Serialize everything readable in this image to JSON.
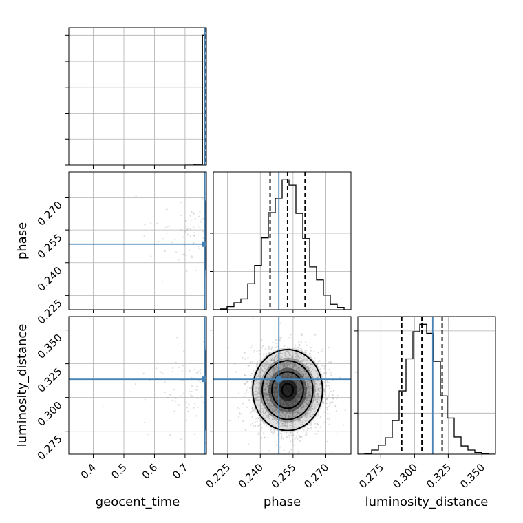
{
  "chart_data": {
    "type": "corner",
    "parameters": [
      "geocent_time",
      "phase",
      "luminosity_distance"
    ],
    "ranges": {
      "geocent_time": [
        0.32,
        0.77
      ],
      "phase": [
        0.2185,
        0.2815
      ],
      "luminosity_distance": [
        0.258,
        0.36
      ]
    },
    "ticks": {
      "geocent_time": [
        "0.4",
        "0.5",
        "0.6",
        "0.7"
      ],
      "phase": [
        "0.225",
        "0.240",
        "0.255",
        "0.270"
      ],
      "luminosity_distance_x": [
        "0.275",
        "0.300",
        "0.325",
        "0.350"
      ],
      "luminosity_distance_y": [
        "0.275",
        "0.300",
        "0.325",
        "0.350"
      ]
    },
    "tick_values": {
      "geocent_time": [
        0.4,
        0.5,
        0.6,
        0.7
      ],
      "phase": [
        0.225,
        0.24,
        0.255,
        0.27
      ],
      "luminosity_distance": [
        0.275,
        0.3,
        0.325,
        0.35
      ]
    },
    "truths": {
      "geocent_time": 0.765,
      "phase": 0.2485,
      "luminosity_distance": 0.3135
    },
    "quantiles": {
      "geocent_time": [
        0.764,
        0.765,
        0.766
      ],
      "phase": [
        0.2445,
        0.2525,
        0.2605
      ],
      "luminosity_distance": [
        0.2905,
        0.3055,
        0.3205
      ]
    },
    "histograms": {
      "geocent_time": {
        "edges": [
          0.7,
          0.73,
          0.757,
          0.77
        ],
        "counts": [
          0,
          1,
          150
        ]
      },
      "phase": {
        "edges": [
          0.2185,
          0.22165,
          0.2248,
          0.22795,
          0.2311,
          0.23425,
          0.2374,
          0.24055,
          0.2437,
          0.24685,
          0.25,
          0.25315,
          0.2563,
          0.25945,
          0.2626,
          0.26575,
          0.2689,
          0.27205,
          0.2752,
          0.27835,
          0.2815
        ],
        "counts": [
          0,
          1,
          4,
          9,
          14,
          34,
          58,
          94,
          127,
          146,
          170,
          163,
          126,
          93,
          56,
          39,
          19,
          7,
          3,
          0
        ]
      },
      "luminosity_distance": {
        "edges": [
          0.258,
          0.2631,
          0.2682,
          0.2733,
          0.2784,
          0.2835,
          0.2886,
          0.2937,
          0.2988,
          0.3039,
          0.309,
          0.3141,
          0.3192,
          0.3243,
          0.3294,
          0.3345,
          0.3396,
          0.3447,
          0.3498,
          0.3549,
          0.36
        ],
        "counts": [
          0,
          1,
          5,
          11,
          20,
          41,
          77,
          116,
          149,
          158,
          147,
          113,
          71,
          44,
          21,
          10,
          5,
          2,
          1,
          0
        ]
      }
    },
    "xlabels": [
      "geocent_time",
      "phase",
      "luminosity_distance"
    ],
    "ylabels": [
      "phase",
      "luminosity_distance"
    ],
    "grid": true
  }
}
